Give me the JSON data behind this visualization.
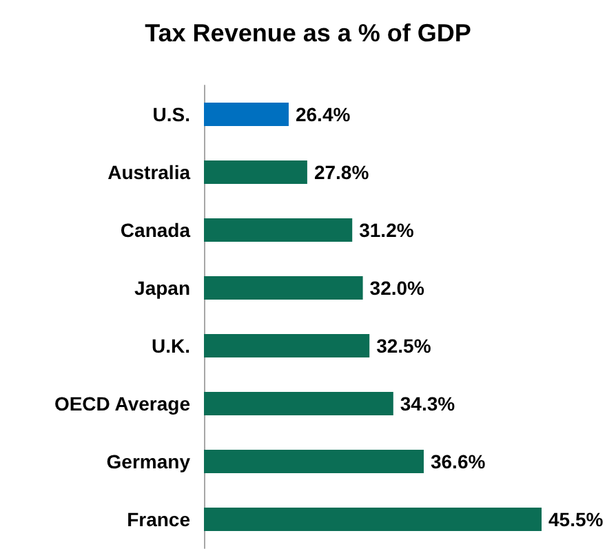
{
  "chart_data": {
    "type": "bar",
    "title": "Tax Revenue as a % of GDP",
    "orientation": "horizontal",
    "categories": [
      "U.S.",
      "Australia",
      "Canada",
      "Japan",
      "U.K.",
      "OECD Average",
      "Germany",
      "France"
    ],
    "values": [
      26.4,
      27.8,
      31.2,
      32.0,
      32.5,
      34.3,
      36.6,
      45.5
    ],
    "colors": [
      "#0070c0",
      "#0b6e55",
      "#0b6e55",
      "#0b6e55",
      "#0b6e55",
      "#0b6e55",
      "#0b6e55",
      "#0b6e55"
    ],
    "value_labels": [
      "26.4%",
      "27.8%",
      "31.2%",
      "32.0%",
      "32.5%",
      "34.3%",
      "36.6%",
      "45.5%"
    ],
    "xlim": [
      20,
      45.5
    ],
    "tick_labels": "y"
  }
}
